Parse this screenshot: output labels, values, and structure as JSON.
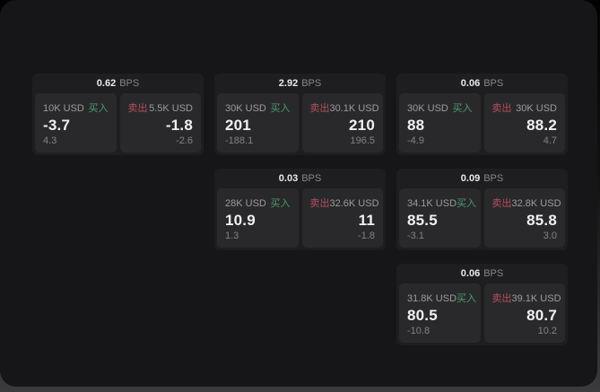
{
  "labels": {
    "buy": "买入",
    "sell": "卖出",
    "bps": "BPS"
  },
  "colors": {
    "buy_green": "#4a9d6e",
    "sell_red": "#b44f5e",
    "page_bg": "#161618",
    "card_bg": "#1e1e20",
    "panel_bg": "#29292b",
    "value_text": "#f0f0f2",
    "muted_text": "#9c9c9e"
  },
  "cards": [
    {
      "bps": "0.62",
      "buy": {
        "amount": "10K USD",
        "price": "-3.7",
        "delta": "4.3"
      },
      "sell": {
        "amount": "5.5K USD",
        "price": "-1.8",
        "delta": "-2.6"
      }
    },
    {
      "bps": "2.92",
      "buy": {
        "amount": "30K USD",
        "price": "201",
        "delta": "-188.1"
      },
      "sell": {
        "amount": "30.1K USD",
        "price": "210",
        "delta": "196.5"
      }
    },
    {
      "bps": "0.06",
      "buy": {
        "amount": "30K USD",
        "price": "88",
        "delta": "-4.9"
      },
      "sell": {
        "amount": "30K USD",
        "price": "88.2",
        "delta": "4.7"
      }
    },
    {
      "bps": "0.03",
      "buy": {
        "amount": "28K USD",
        "price": "10.9",
        "delta": "1.3"
      },
      "sell": {
        "amount": "32.6K USD",
        "price": "11",
        "delta": "-1.8"
      }
    },
    {
      "bps": "0.09",
      "buy": {
        "amount": "34.1K USD",
        "price": "85.5",
        "delta": "-3.1"
      },
      "sell": {
        "amount": "32.8K USD",
        "price": "85.8",
        "delta": "3.0"
      }
    },
    {
      "bps": "0.06",
      "buy": {
        "amount": "31.8K USD",
        "price": "80.5",
        "delta": "-10.8"
      },
      "sell": {
        "amount": "39.1K USD",
        "price": "80.7",
        "delta": "10.2"
      }
    }
  ]
}
